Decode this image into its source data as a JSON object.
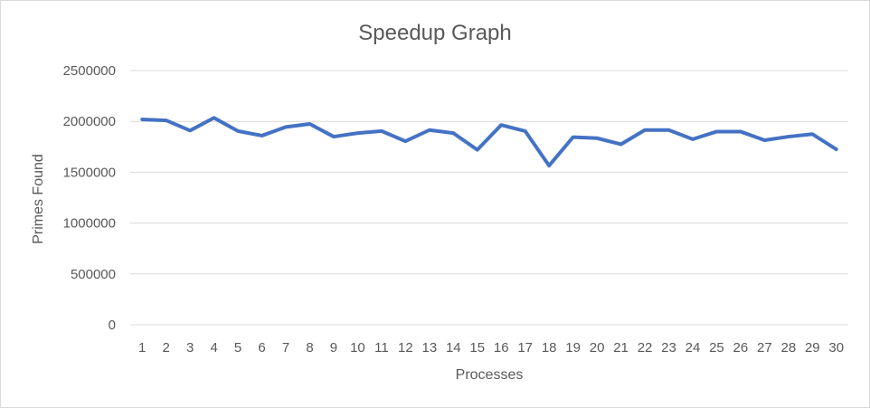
{
  "chart_data": {
    "type": "line",
    "title": "Speedup Graph",
    "xlabel": "Processes",
    "ylabel": "Primes Found",
    "categories": [
      "1",
      "2",
      "3",
      "4",
      "5",
      "6",
      "7",
      "8",
      "9",
      "10",
      "11",
      "12",
      "13",
      "14",
      "15",
      "16",
      "17",
      "18",
      "19",
      "20",
      "21",
      "22",
      "23",
      "24",
      "25",
      "26",
      "27",
      "28",
      "29",
      "30"
    ],
    "series": [
      {
        "values": [
          2020000,
          2010000,
          1910000,
          2035000,
          1905000,
          1860000,
          1945000,
          1975000,
          1850000,
          1885000,
          1905000,
          1805000,
          1915000,
          1885000,
          1720000,
          1965000,
          1905000,
          1565000,
          1845000,
          1835000,
          1775000,
          1915000,
          1915000,
          1825000,
          1900000,
          1900000,
          1815000,
          1850000,
          1875000,
          1725000
        ]
      }
    ],
    "ylim": [
      0,
      2500000
    ],
    "yticks": [
      "0",
      "500000",
      "1000000",
      "1500000",
      "2000000",
      "2500000"
    ],
    "grid": true,
    "legend": "none",
    "colors": {
      "line": "#4472C4",
      "grid": "#d9d9d9",
      "text": "#595959"
    }
  }
}
